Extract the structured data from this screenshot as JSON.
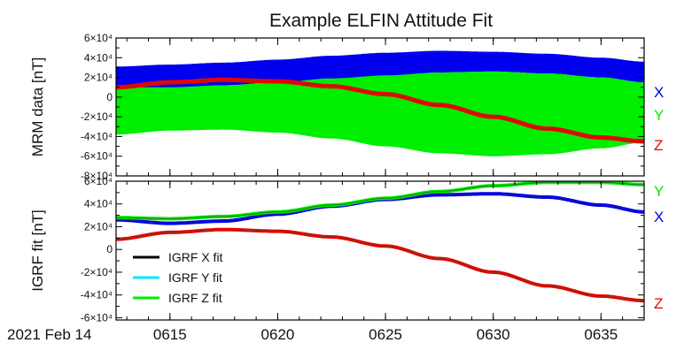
{
  "title": "Example ELFIN Attitude Fit",
  "x_start_label": "2021 Feb 14",
  "colors": {
    "x": "#0000ee",
    "y": "#00ee00",
    "z": "#ee0000",
    "black": "#000000",
    "cyan": "#00e5ff"
  },
  "chart_data": [
    {
      "type": "area",
      "ylabel": "MRM data [nT]",
      "ylim": [
        -80000,
        60000
      ],
      "y_ticks": [
        60000,
        40000,
        20000,
        0,
        -20000,
        -40000,
        -60000,
        -80000
      ],
      "y_tick_labels": [
        "6×10⁴",
        "4×10⁴",
        "2×10⁴",
        "0",
        "-2×10⁴",
        "-4×10⁴",
        "-6×10⁴",
        "-8×10⁴"
      ],
      "x_ticks": [
        "06:15",
        "06:20",
        "06:25",
        "06:30",
        "06:35"
      ],
      "x_tick_labels": [
        "0615",
        "0620",
        "0625",
        "0630",
        "0635"
      ],
      "xlim": [
        "06:12:30",
        "06:37:00"
      ],
      "side_labels": [
        {
          "text": "X",
          "color": "#0000ee"
        },
        {
          "text": "Y",
          "color": "#00ee00"
        },
        {
          "text": "Z",
          "color": "#ee0000"
        }
      ],
      "series": [
        {
          "name": "X",
          "color": "#0000ee",
          "x": [
            "06:12:30",
            "06:15:00",
            "06:17:30",
            "06:20:00",
            "06:22:30",
            "06:25:00",
            "06:27:30",
            "06:30:00",
            "06:32:30",
            "06:35:00",
            "06:37:00"
          ],
          "upper": [
            31000,
            33000,
            35000,
            38000,
            42000,
            45000,
            47000,
            46000,
            44000,
            40000,
            36000
          ],
          "lower": [
            10000,
            9500,
            12000,
            15000,
            18000,
            21000,
            25000,
            26000,
            24000,
            20000,
            15000
          ]
        },
        {
          "name": "Y",
          "color": "#00ee00",
          "x": [
            "06:12:30",
            "06:15:00",
            "06:17:30",
            "06:20:00",
            "06:22:30",
            "06:25:00",
            "06:27:30",
            "06:30:00",
            "06:32:30",
            "06:35:00",
            "06:37:00"
          ],
          "upper": [
            10000,
            10000,
            12000,
            15000,
            19000,
            22000,
            25000,
            26000,
            24000,
            20000,
            15000
          ],
          "lower": [
            -38000,
            -34000,
            -33000,
            -36000,
            -42000,
            -50000,
            -57000,
            -60000,
            -58000,
            -52000,
            -46000
          ]
        },
        {
          "name": "Z",
          "color": "#ee0000",
          "x": [
            "06:12:30",
            "06:15:00",
            "06:17:30",
            "06:20:00",
            "06:22:30",
            "06:25:00",
            "06:27:30",
            "06:30:00",
            "06:32:30",
            "06:35:00",
            "06:37:00"
          ],
          "y": [
            10000,
            15000,
            17500,
            16000,
            11000,
            3000,
            -8000,
            -20000,
            -32000,
            -41000,
            -45000
          ]
        }
      ]
    },
    {
      "type": "line",
      "ylabel": "IGRF fit [nT]",
      "ylim": [
        -62000,
        60000
      ],
      "y_ticks": [
        60000,
        40000,
        20000,
        0,
        -20000,
        -40000,
        -60000
      ],
      "y_tick_labels": [
        "6×10⁴",
        "4×10⁴",
        "2×10⁴",
        "0",
        "-2×10⁴",
        "-4×10⁴",
        "-6×10⁴"
      ],
      "x_ticks": [
        "06:15",
        "06:20",
        "06:25",
        "06:30",
        "06:35"
      ],
      "x_tick_labels": [
        "0615",
        "0620",
        "0625",
        "0630",
        "0635"
      ],
      "xlim": [
        "06:12:30",
        "06:37:00"
      ],
      "side_labels": [
        {
          "text": "Y",
          "color": "#00ee00"
        },
        {
          "text": "X",
          "color": "#0000ee"
        },
        {
          "text": "Z",
          "color": "#ee0000"
        }
      ],
      "legend": [
        {
          "label": "IGRF X fit",
          "color": "#000000"
        },
        {
          "label": "IGRF Y fit",
          "color": "#00e5ff"
        },
        {
          "label": "IGRF Z fit",
          "color": "#00ee00"
        }
      ],
      "series": [
        {
          "name": "X",
          "color": "#0000ee",
          "x": [
            "06:12:30",
            "06:15:00",
            "06:17:30",
            "06:20:00",
            "06:22:30",
            "06:25:00",
            "06:27:30",
            "06:30:00",
            "06:32:30",
            "06:35:00",
            "06:37:00"
          ],
          "y": [
            26000,
            23000,
            25000,
            31000,
            38000,
            44000,
            48000,
            49000,
            46000,
            39000,
            33000
          ]
        },
        {
          "name": "Y",
          "color": "#00ee00",
          "x": [
            "06:12:30",
            "06:15:00",
            "06:17:30",
            "06:20:00",
            "06:22:30",
            "06:25:00",
            "06:27:30",
            "06:30:00",
            "06:32:30",
            "06:35:00",
            "06:37:00"
          ],
          "y": [
            28000,
            27000,
            29000,
            33000,
            39000,
            45000,
            51000,
            56000,
            59000,
            59000,
            57000
          ]
        },
        {
          "name": "Z",
          "color": "#ee0000",
          "x": [
            "06:12:30",
            "06:15:00",
            "06:17:30",
            "06:20:00",
            "06:22:30",
            "06:25:00",
            "06:27:30",
            "06:30:00",
            "06:32:30",
            "06:35:00",
            "06:37:00"
          ],
          "y": [
            9000,
            15000,
            17500,
            16000,
            11000,
            3000,
            -8000,
            -20000,
            -32000,
            -41000,
            -45000
          ]
        }
      ]
    }
  ]
}
